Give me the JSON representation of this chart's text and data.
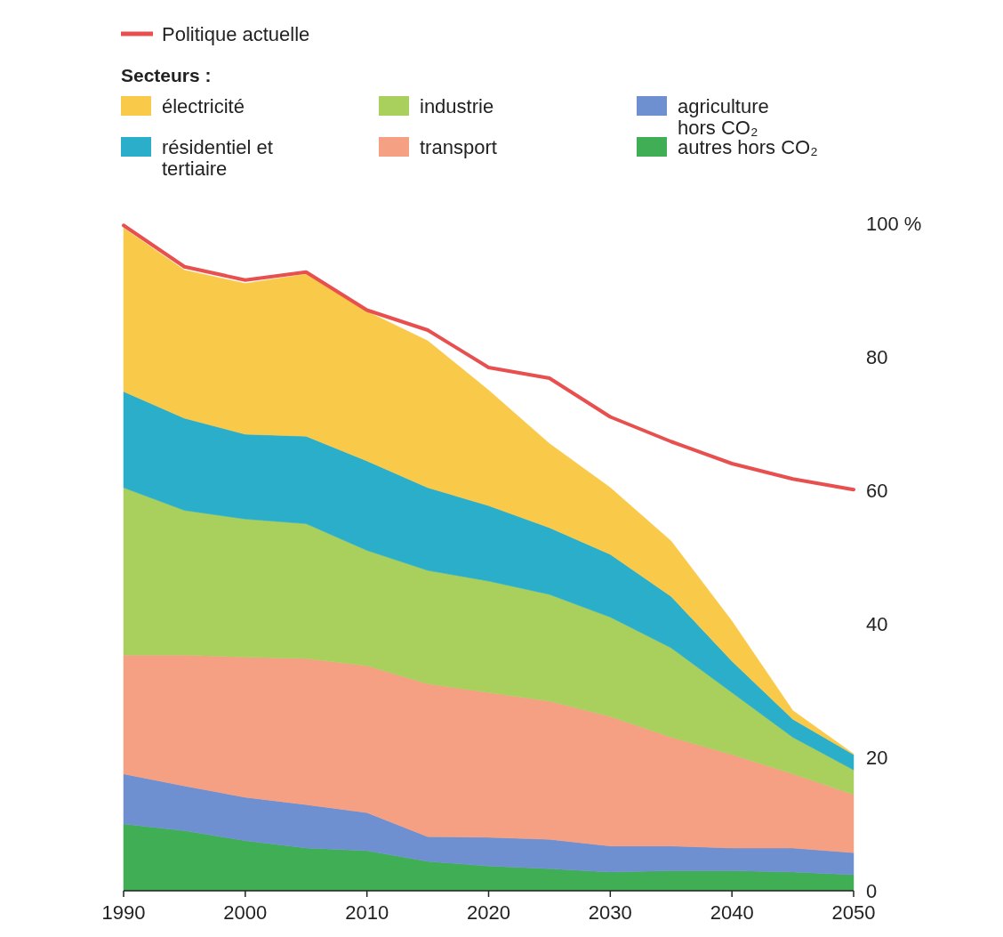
{
  "chart_data": {
    "type": "area",
    "stacked": true,
    "legend": "top left",
    "legend_title": "Secteurs :",
    "x": [
      1990,
      1995,
      2000,
      2005,
      2010,
      2015,
      2020,
      2025,
      2030,
      2035,
      2040,
      2045,
      2050
    ],
    "xlim": [
      1990,
      2050
    ],
    "xticks": [
      1990,
      2000,
      2010,
      2020,
      2030,
      2040,
      2050
    ],
    "ylim": [
      0,
      100
    ],
    "yticks": [
      0,
      20,
      40,
      60,
      80,
      {
        "value": 100,
        "label": "100 %"
      }
    ],
    "grid": false,
    "series": [
      {
        "name": "autres hors CO₂",
        "color": "#3fae55",
        "values": [
          10,
          9,
          7.5,
          6.4,
          6,
          4.4,
          3.7,
          3.3,
          2.8,
          3,
          3,
          2.8,
          2.4
        ]
      },
      {
        "name": "agriculture hors CO₂",
        "color": "#6e8fd0",
        "values": [
          7.5,
          6.7,
          6.5,
          6.5,
          5.7,
          3.7,
          4.3,
          4.4,
          3.9,
          3.7,
          3.4,
          3.6,
          3.3
        ]
      },
      {
        "name": "transport",
        "color": "#f5a083",
        "values": [
          17.8,
          19.6,
          21,
          21.9,
          22,
          22.9,
          21.7,
          20.7,
          19.4,
          16.3,
          14,
          11.1,
          8.7
        ]
      },
      {
        "name": "industrie",
        "color": "#a9cf5c",
        "values": [
          25.1,
          21.7,
          20.7,
          20.2,
          17.3,
          17,
          16.7,
          16,
          14.9,
          13.4,
          9.3,
          5.5,
          3.7
        ]
      },
      {
        "name": "résidentiel et tertiaire",
        "color": "#2aaec9",
        "values": [
          14.4,
          13.8,
          12.7,
          13.1,
          13.4,
          12.4,
          11.3,
          10,
          9.4,
          7.7,
          4.7,
          2.7,
          2.3
        ]
      },
      {
        "name": "électricité",
        "color": "#f9c94a",
        "values": [
          24.5,
          22.2,
          22.6,
          24.3,
          22.4,
          22,
          17.3,
          12.6,
          10,
          8.3,
          6,
          1.3,
          0.1
        ]
      },
      {
        "name": "Politique actuelle",
        "type": "line",
        "color": "#e8504f",
        "values": [
          99.7,
          93.5,
          91.5,
          92.7,
          87,
          84,
          78.4,
          76.8,
          71,
          67.3,
          64,
          61.7,
          60.1
        ]
      }
    ]
  }
}
